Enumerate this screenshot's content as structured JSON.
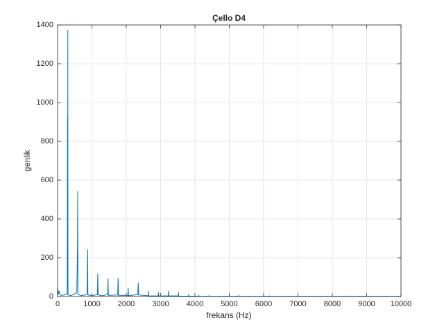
{
  "chart_data": {
    "type": "line",
    "title": "Çello D4",
    "x_label": "frekans (Hz)",
    "y_label": "genlik",
    "x": [
      0,
      20,
      40,
      60,
      100,
      200,
      280,
      290,
      294,
      298,
      303,
      310,
      400,
      560,
      580,
      587,
      592,
      600,
      700,
      860,
      870,
      876,
      882,
      890,
      1000,
      1160,
      1170,
      1180,
      1300,
      1460,
      1468,
      1480,
      1750,
      1762,
      1775,
      2045,
      2055,
      2065,
      2335,
      2349,
      2360,
      2635,
      2643,
      2650,
      2930,
      2937,
      2945,
      3222,
      3230,
      3238,
      3517,
      3524,
      3531,
      3810,
      3818,
      3825,
      4105,
      4112,
      4120,
      4400,
      4406,
      4412,
      5000,
      5280,
      5286,
      5292,
      6000,
      6160,
      6166,
      6172,
      7000,
      8500,
      8512,
      8520,
      10000
    ],
    "values": [
      48,
      10,
      30,
      12,
      6,
      8,
      10,
      920,
      40,
      1375,
      15,
      8,
      5,
      20,
      250,
      543,
      30,
      10,
      5,
      10,
      170,
      243,
      20,
      8,
      4,
      10,
      118,
      8,
      4,
      10,
      93,
      6,
      8,
      96,
      6,
      6,
      43,
      4,
      10,
      71,
      8,
      4,
      29,
      3,
      3,
      21,
      3,
      3,
      29,
      3,
      3,
      21,
      2,
      2,
      11,
      2,
      2,
      7,
      1,
      1,
      4,
      1,
      1,
      1,
      5,
      1,
      1,
      1,
      3,
      1,
      1,
      1,
      3,
      1,
      1
    ],
    "color": "#0072BD",
    "xlim": [
      0,
      10000
    ],
    "xticks": [
      0,
      1000,
      2000,
      3000,
      4000,
      5000,
      6000,
      7000,
      8000,
      9000,
      10000
    ],
    "ylim": [
      0,
      1400
    ],
    "yticks": [
      0,
      200,
      400,
      600,
      800,
      1000,
      1200,
      1400
    ],
    "grid": true
  }
}
